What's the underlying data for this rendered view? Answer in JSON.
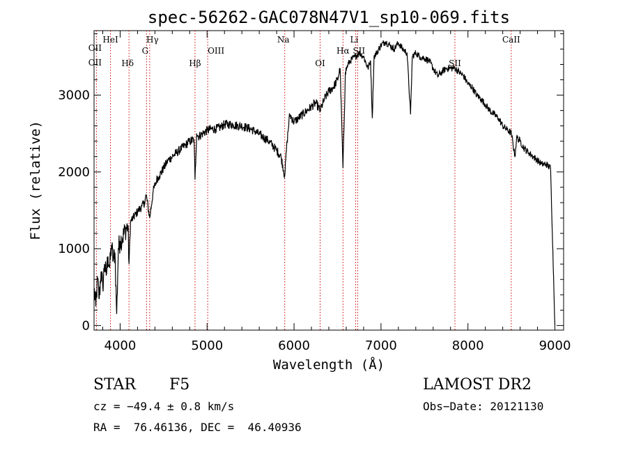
{
  "chart_data": {
    "type": "line",
    "title": "spec-56262-GAC078N47V1_sp10-069.fits",
    "xlabel": "Wavelength (Å)",
    "ylabel": "Flux (relative)",
    "xlim": [
      3700,
      9100
    ],
    "ylim": [
      -60,
      3840
    ],
    "xticks": [
      4000,
      5000,
      6000,
      7000,
      8000,
      9000
    ],
    "yticks": [
      0,
      1000,
      2000,
      3000
    ],
    "grid": false,
    "line_color": "#000000",
    "marker_color": "#cc0000",
    "spectrum": {
      "x": [
        3700,
        3720,
        3740,
        3760,
        3780,
        3800,
        3820,
        3840,
        3860,
        3880,
        3900,
        3920,
        3940,
        3960,
        3980,
        4000,
        4030,
        4060,
        4090,
        4102,
        4120,
        4150,
        4180,
        4210,
        4250,
        4280,
        4300,
        4340,
        4380,
        4420,
        4450,
        4500,
        4550,
        4600,
        4650,
        4700,
        4750,
        4800,
        4850,
        4861,
        4880,
        4900,
        4950,
        5000,
        5050,
        5100,
        5150,
        5200,
        5250,
        5300,
        5350,
        5400,
        5450,
        5500,
        5550,
        5600,
        5650,
        5700,
        5750,
        5800,
        5850,
        5893,
        5920,
        5950,
        6000,
        6050,
        6100,
        6150,
        6200,
        6250,
        6300,
        6350,
        6400,
        6450,
        6500,
        6530,
        6563,
        6590,
        6620,
        6650,
        6700,
        6750,
        6800,
        6850,
        6880,
        6900,
        6920,
        6950,
        7000,
        7050,
        7100,
        7150,
        7200,
        7250,
        7300,
        7340,
        7360,
        7400,
        7450,
        7500,
        7550,
        7600,
        7650,
        7700,
        7750,
        7800,
        7850,
        7900,
        7950,
        8000,
        8050,
        8100,
        8150,
        8200,
        8250,
        8300,
        8350,
        8400,
        8450,
        8500,
        8540,
        8560,
        8600,
        8650,
        8700,
        8750,
        8800,
        8850,
        8900,
        8950,
        9000
      ],
      "y": [
        480,
        250,
        600,
        350,
        700,
        500,
        800,
        650,
        900,
        750,
        1050,
        850,
        950,
        150,
        1000,
        1100,
        1150,
        1250,
        1300,
        800,
        1350,
        1400,
        1450,
        1500,
        1550,
        1600,
        1700,
        1400,
        1750,
        1900,
        1950,
        2050,
        2150,
        2200,
        2250,
        2300,
        2350,
        2400,
        2420,
        1900,
        2500,
        2460,
        2500,
        2540,
        2560,
        2560,
        2580,
        2620,
        2620,
        2620,
        2600,
        2600,
        2580,
        2560,
        2530,
        2490,
        2450,
        2410,
        2350,
        2280,
        2200,
        1950,
        2400,
        2750,
        2650,
        2700,
        2750,
        2800,
        2850,
        2900,
        2800,
        2950,
        3050,
        3100,
        3200,
        3350,
        2050,
        3300,
        3400,
        3450,
        3500,
        3550,
        3500,
        3350,
        3450,
        2700,
        3500,
        3550,
        3650,
        3700,
        3650,
        3600,
        3680,
        3600,
        3550,
        2750,
        3500,
        3550,
        3500,
        3480,
        3450,
        3350,
        3250,
        3300,
        3350,
        3350,
        3350,
        3300,
        3250,
        3150,
        3100,
        3000,
        2950,
        2880,
        2800,
        2750,
        2700,
        2600,
        2550,
        2500,
        2200,
        2450,
        2400,
        2300,
        2250,
        2200,
        2150,
        2100,
        2100,
        2050,
        0
      ]
    },
    "lines": [
      {
        "name": "OII",
        "x": 3727
      },
      {
        "name": "HeI",
        "x": 3889
      },
      {
        "name": "Hδ",
        "x": 4102
      },
      {
        "name": "Hγ",
        "x": 4340
      },
      {
        "name": "G",
        "x": 4304
      },
      {
        "name": "Hβ",
        "x": 4861
      },
      {
        "name": "OIII",
        "x": 5007
      },
      {
        "name": "Na",
        "x": 5893
      },
      {
        "name": "OI",
        "x": 6300
      },
      {
        "name": "Hα",
        "x": 6563
      },
      {
        "name": "Li",
        "x": 6708
      },
      {
        "name": "SII",
        "x": 6731
      },
      {
        "name": "SII",
        "x": 7850
      },
      {
        "name": "CaII",
        "x": 8498
      }
    ]
  },
  "info": {
    "object_class": "STAR",
    "subclass": "F5",
    "survey": "LAMOST DR2",
    "cz": "cz = −49.4 ± 0.8 km/s",
    "obs_date": "Obs−Date: 20121130",
    "coords": "RA =  76.46136, DEC =  46.40936"
  }
}
